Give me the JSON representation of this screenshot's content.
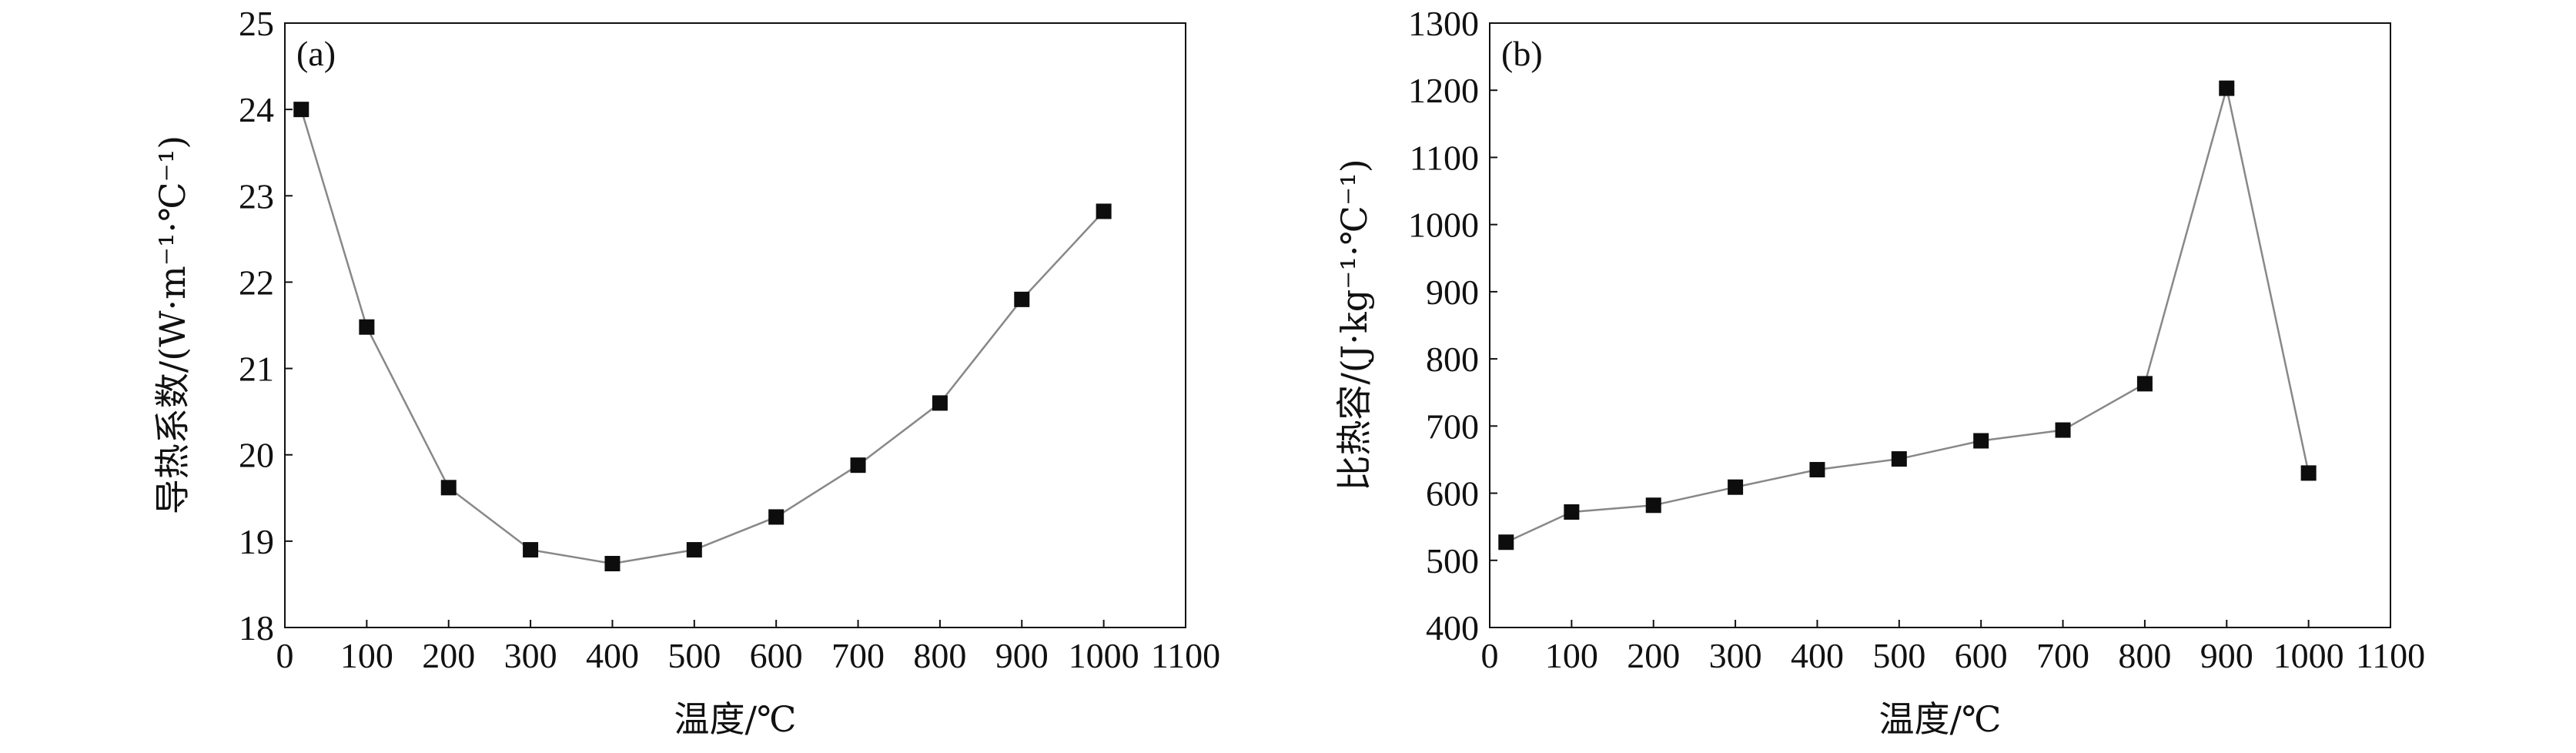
{
  "chart_data": [
    {
      "type": "line",
      "panel_label": "(a)",
      "xlabel": "温度/℃",
      "ylabel": "导热系数/(W·m⁻¹·℃⁻¹)",
      "xlim": [
        0,
        1100
      ],
      "ylim": [
        18,
        25
      ],
      "xticks": [
        "0",
        "100",
        "200",
        "300",
        "400",
        "500",
        "600",
        "700",
        "800",
        "900",
        "1000",
        "1100"
      ],
      "yticks": [
        "18",
        "19",
        "20",
        "21",
        "22",
        "23",
        "24",
        "25"
      ],
      "marker": "square",
      "series": [
        {
          "x": [
            20,
            100,
            200,
            300,
            400,
            500,
            600,
            700,
            800,
            900,
            1000
          ],
          "y": [
            24.0,
            21.48,
            19.62,
            18.9,
            18.74,
            18.9,
            19.28,
            19.88,
            20.6,
            21.8,
            22.82
          ]
        }
      ]
    },
    {
      "type": "line",
      "panel_label": "(b)",
      "xlabel": "温度/℃",
      "ylabel": "比热容/(J·kg⁻¹·℃⁻¹)",
      "xlim": [
        0,
        1100
      ],
      "ylim": [
        400,
        1300
      ],
      "xticks": [
        "0",
        "100",
        "200",
        "300",
        "400",
        "500",
        "600",
        "700",
        "800",
        "900",
        "1000",
        "1100"
      ],
      "yticks": [
        "400",
        "500",
        "600",
        "700",
        "800",
        "900",
        "1000",
        "1100",
        "1200",
        "1300"
      ],
      "marker": "square",
      "series": [
        {
          "x": [
            20,
            100,
            200,
            300,
            400,
            500,
            600,
            700,
            800,
            900,
            1000
          ],
          "y": [
            527,
            572,
            582,
            609,
            635,
            651,
            678,
            694,
            763,
            1203,
            630
          ]
        }
      ]
    }
  ]
}
